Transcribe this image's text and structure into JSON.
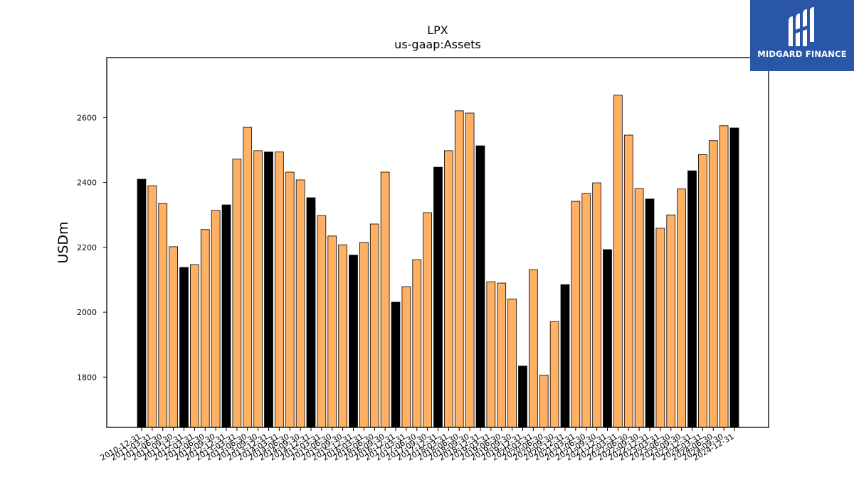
{
  "logo": {
    "text": "MIDGARD FINANCE",
    "icon": "midgard-m-logo",
    "background": "#2a56a8"
  },
  "chart_data": {
    "type": "bar",
    "title": "LPX",
    "subtitle": "us-gaap:Assets",
    "ylabel": "USDm",
    "xlabel": "",
    "ylim": [
      1645,
      2785
    ],
    "yticks": [
      1800,
      2000,
      2200,
      2400,
      2600
    ],
    "grid": false,
    "colors": {
      "year_end": "#000000",
      "quarter": "#ffb062",
      "edge": "#000000"
    },
    "categories": [
      "2010-12-31",
      "2011-03-31",
      "2011-06-30",
      "2011-09-30",
      "2011-12-31",
      "2012-03-31",
      "2012-06-30",
      "2012-09-30",
      "2012-12-31",
      "2013-03-31",
      "2013-06-30",
      "2013-09-30",
      "2013-12-31",
      "2014-03-31",
      "2014-06-30",
      "2014-09-30",
      "2014-12-31",
      "2015-03-31",
      "2015-06-30",
      "2015-09-30",
      "2015-12-31",
      "2016-03-31",
      "2016-06-30",
      "2016-09-30",
      "2016-12-31",
      "2017-03-31",
      "2017-06-30",
      "2017-09-30",
      "2017-12-31",
      "2018-03-31",
      "2018-06-30",
      "2018-09-30",
      "2018-12-31",
      "2019-03-31",
      "2019-06-30",
      "2019-09-30",
      "2019-12-31",
      "2020-03-31",
      "2020-06-30",
      "2020-09-30",
      "2020-12-31",
      "2021-03-31",
      "2021-06-30",
      "2021-09-30",
      "2021-12-31",
      "2022-03-31",
      "2022-06-30",
      "2022-09-30",
      "2022-12-31",
      "2023-03-31",
      "2023-06-30",
      "2023-09-30",
      "2023-12-31",
      "2024-03-31",
      "2024-06-30",
      "2024-09-30",
      "2024-12-31"
    ],
    "values": [
      2410,
      2390,
      2335,
      2202,
      2138,
      2147,
      2255,
      2314,
      2331,
      2472,
      2570,
      2498,
      2494,
      2494,
      2432,
      2408,
      2353,
      2298,
      2235,
      2208,
      2176,
      2215,
      2272,
      2432,
      2031,
      2079,
      2162,
      2307,
      2447,
      2498,
      2621,
      2614,
      2513,
      2094,
      2090,
      2041,
      1834,
      2131,
      1806,
      1971,
      2085,
      2342,
      2366,
      2399,
      2193,
      2669,
      2546,
      2381,
      2349,
      2259,
      2300,
      2380,
      2436,
      2486,
      2529,
      2575,
      2568
    ]
  }
}
